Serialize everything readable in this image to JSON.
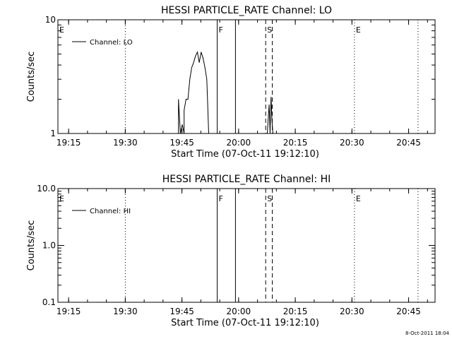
{
  "chart_data": [
    {
      "type": "line",
      "title": "HESSI PARTICLE_RATE Channel: LO",
      "xlabel": "Start Time (07-Oct-11 19:12:10)",
      "ylabel": "Counts/sec",
      "yscale": "log",
      "ylim": [
        1,
        10
      ],
      "xlim": [
        "19:12:10",
        "20:52:00"
      ],
      "x_ticks": [
        "19:15",
        "19:30",
        "19:45",
        "20:00",
        "20:15",
        "20:30",
        "20:45"
      ],
      "y_ticks": [
        "1",
        "10"
      ],
      "legend": {
        "entries": [
          "Channel: LO"
        ],
        "position": "top-left"
      },
      "grid": false,
      "series": [
        {
          "name": "Channel: LO",
          "points": [
            [
              "19:44:05",
              1.0
            ],
            [
              "19:44:05",
              2.0
            ],
            [
              "19:44:35",
              1.0
            ],
            [
              "19:45:05",
              1.2
            ],
            [
              "19:45:35",
              1.0
            ],
            [
              "19:45:35",
              1.6
            ],
            [
              "19:46:05",
              2.0
            ],
            [
              "19:46:35",
              2.0
            ],
            [
              "19:47:05",
              3.0
            ],
            [
              "19:47:35",
              3.8
            ],
            [
              "19:48:05",
              4.2
            ],
            [
              "19:48:35",
              4.8
            ],
            [
              "19:49:05",
              5.2
            ],
            [
              "19:49:35",
              4.2
            ],
            [
              "19:50:05",
              5.2
            ],
            [
              "19:50:35",
              4.6
            ],
            [
              "19:51:05",
              3.8
            ],
            [
              "19:51:35",
              3.0
            ],
            [
              "19:52:05",
              1.0
            ],
            [
              "20:07:35",
              1.0
            ],
            [
              "20:08:05",
              1.8
            ],
            [
              "20:08:20",
              1.0
            ],
            [
              "20:08:35",
              2.1
            ],
            [
              "20:08:50",
              1.3
            ],
            [
              "20:09:05",
              1.0
            ]
          ]
        }
      ]
    },
    {
      "type": "line",
      "title": "HESSI PARTICLE_RATE Channel: HI",
      "xlabel": "Start Time (07-Oct-11 19:12:10)",
      "ylabel": "Counts/sec",
      "yscale": "log",
      "ylim": [
        0.1,
        10
      ],
      "xlim": [
        "19:12:10",
        "20:52:00"
      ],
      "x_ticks": [
        "19:15",
        "19:30",
        "19:45",
        "20:00",
        "20:15",
        "20:30",
        "20:45"
      ],
      "y_ticks": [
        "0.1",
        "1.0",
        "10.0"
      ],
      "legend": {
        "entries": [
          "Channel: HI"
        ],
        "position": "top-left"
      },
      "grid": false,
      "series": [
        {
          "name": "Channel: HI",
          "points": []
        }
      ]
    }
  ],
  "markers": [
    {
      "label": "E",
      "time": "19:12:10",
      "style": "none"
    },
    {
      "label": "",
      "time": "19:30:00",
      "style": "dotted"
    },
    {
      "label": "F",
      "time": "19:54:20",
      "style": "solid"
    },
    {
      "label": "",
      "time": "19:59:10",
      "style": "solid"
    },
    {
      "label": "S",
      "time": "20:07:10",
      "style": "dashed"
    },
    {
      "label": "",
      "time": "20:08:55",
      "style": "dashed"
    },
    {
      "label": "E",
      "time": "20:30:40",
      "style": "dotted"
    },
    {
      "label": "",
      "time": "20:47:30",
      "style": "dotted"
    }
  ],
  "footer_timestamp": "8-Oct-2011 18:04"
}
